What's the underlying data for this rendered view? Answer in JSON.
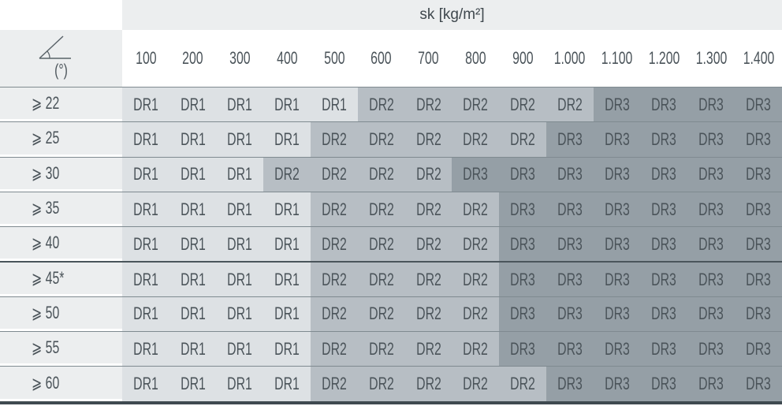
{
  "header": {
    "title": "sk [kg/m²]",
    "angle_unit": "(°)",
    "angle_icon": "roof-pitch-angle-icon"
  },
  "columns": [
    "100",
    "200",
    "300",
    "400",
    "500",
    "600",
    "700",
    "800",
    "900",
    "1.000",
    "1.100",
    "1.200",
    "1.300",
    "1.400"
  ],
  "colors": {
    "DR1": "#dde1e4",
    "DR2": "#b7bec4",
    "DR3": "#959fa6",
    "row_header": "#eceeef"
  },
  "rows": [
    {
      "label": "⩾ 22",
      "cells": [
        "DR1",
        "DR1",
        "DR1",
        "DR1",
        "DR1",
        "DR2",
        "DR2",
        "DR2",
        "DR2",
        "DR2",
        "DR3",
        "DR3",
        "DR3",
        "DR3"
      ]
    },
    {
      "label": "⩾ 25",
      "cells": [
        "DR1",
        "DR1",
        "DR1",
        "DR1",
        "DR2",
        "DR2",
        "DR2",
        "DR2",
        "DR2",
        "DR3",
        "DR3",
        "DR3",
        "DR3",
        "DR3"
      ]
    },
    {
      "label": "⩾ 30",
      "cells": [
        "DR1",
        "DR1",
        "DR1",
        "DR2",
        "DR2",
        "DR2",
        "DR2",
        "DR3",
        "DR3",
        "DR3",
        "DR3",
        "DR3",
        "DR3",
        "DR3"
      ]
    },
    {
      "label": "⩾ 35",
      "cells": [
        "DR1",
        "DR1",
        "DR1",
        "DR1",
        "DR2",
        "DR2",
        "DR2",
        "DR2",
        "DR3",
        "DR3",
        "DR3",
        "DR3",
        "DR3",
        "DR3"
      ]
    },
    {
      "label": "⩾ 40",
      "cells": [
        "DR1",
        "DR1",
        "DR1",
        "DR1",
        "DR2",
        "DR2",
        "DR2",
        "DR2",
        "DR3",
        "DR3",
        "DR3",
        "DR3",
        "DR3",
        "DR3"
      ]
    },
    {
      "label": "⩾ 45*",
      "cells": [
        "DR1",
        "DR1",
        "DR1",
        "DR1",
        "DR2",
        "DR2",
        "DR2",
        "DR2",
        "DR3",
        "DR3",
        "DR3",
        "DR3",
        "DR3",
        "DR3"
      ]
    },
    {
      "label": "⩾ 50",
      "cells": [
        "DR1",
        "DR1",
        "DR1",
        "DR1",
        "DR2",
        "DR2",
        "DR2",
        "DR2",
        "DR3",
        "DR3",
        "DR3",
        "DR3",
        "DR3",
        "DR3"
      ]
    },
    {
      "label": "⩾ 55",
      "cells": [
        "DR1",
        "DR1",
        "DR1",
        "DR1",
        "DR2",
        "DR2",
        "DR2",
        "DR2",
        "DR3",
        "DR3",
        "DR3",
        "DR3",
        "DR3",
        "DR3"
      ]
    },
    {
      "label": "⩾ 60",
      "cells": [
        "DR1",
        "DR1",
        "DR1",
        "DR1",
        "DR2",
        "DR2",
        "DR2",
        "DR2",
        "DR2",
        "DR3",
        "DR3",
        "DR3",
        "DR3",
        "DR3"
      ]
    }
  ]
}
